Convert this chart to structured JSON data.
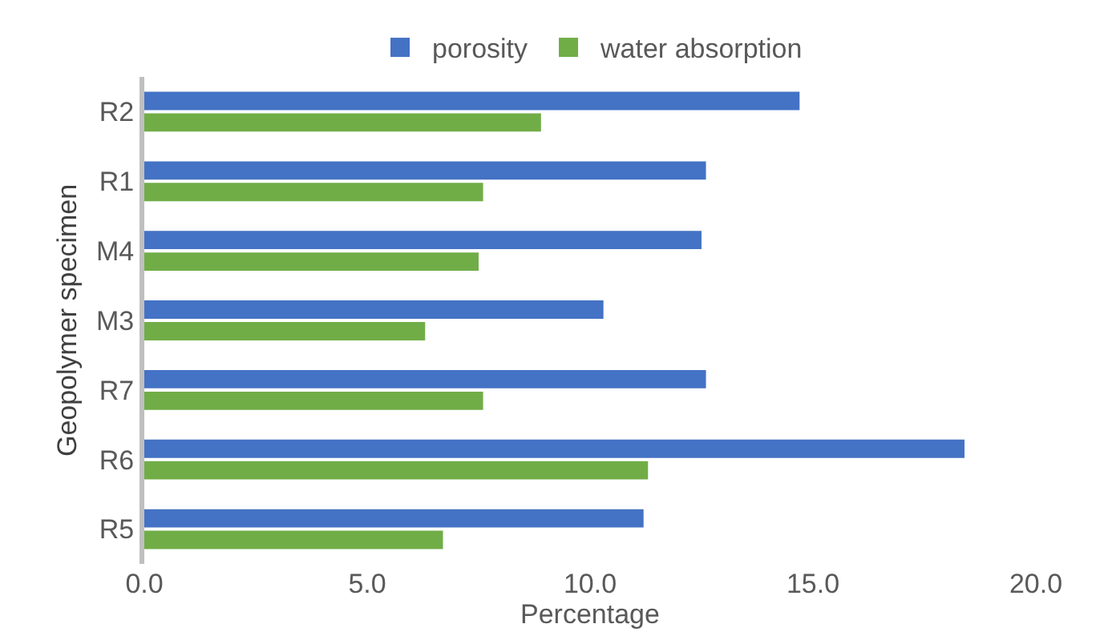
{
  "chart_data": {
    "type": "bar",
    "orientation": "horizontal",
    "xlabel": "Percentage",
    "ylabel": "Geopolymer specimen",
    "categories": [
      "R2",
      "R1",
      "M4",
      "M3",
      "R7",
      "R6",
      "R5"
    ],
    "series": [
      {
        "name": "porosity",
        "color": "#4472c4",
        "values": [
          14.7,
          12.6,
          12.5,
          10.3,
          12.6,
          18.4,
          11.2
        ]
      },
      {
        "name": "water absorption",
        "color": "#70ad47",
        "values": [
          8.9,
          7.6,
          7.5,
          6.3,
          7.6,
          11.3,
          6.7
        ]
      }
    ],
    "xlim": [
      0,
      20
    ],
    "xticks": [
      {
        "value": 0,
        "label": "0.0"
      },
      {
        "value": 5,
        "label": "5.0"
      },
      {
        "value": 10,
        "label": "10.0"
      },
      {
        "value": 15,
        "label": "15.0"
      },
      {
        "value": 20,
        "label": "20.0"
      }
    ],
    "legend": "top"
  }
}
